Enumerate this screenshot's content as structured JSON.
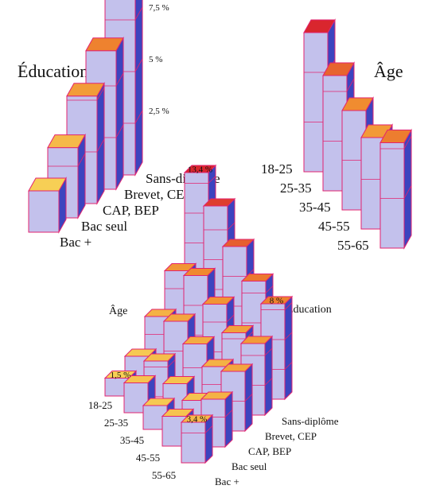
{
  "chart_data": [
    {
      "type": "bar",
      "subtype": "3d",
      "title": "Éducation",
      "categories": [
        "Bac +",
        "Bac seul",
        "CAP, BEP",
        "Brevet, CEP",
        "Sans-diplôme"
      ],
      "values": [
        2.0,
        3.4,
        5.2,
        6.7,
        10.7
      ],
      "tick_labels": [
        "2,5 %",
        "5 %",
        "7,5 %"
      ],
      "tick_values": [
        2.5,
        5,
        7.5
      ]
    },
    {
      "type": "bar",
      "subtype": "3d",
      "title": "Âge",
      "categories": [
        "18-25",
        "25-35",
        "35-45",
        "45-55",
        "55-65"
      ],
      "values": [
        7.0,
        5.8,
        5.0,
        4.6,
        5.3
      ]
    },
    {
      "type": "bar",
      "subtype": "3d-grid",
      "row_axis_title": "Âge",
      "col_axis_title": "Éducation",
      "rows": [
        "18-25",
        "25-35",
        "35-45",
        "45-55",
        "55-65"
      ],
      "cols": [
        "Bac +",
        "Bac seul",
        "CAP, BEP",
        "Brevet, CEP",
        "Sans-diplôme"
      ],
      "values": [
        [
          1.5,
          2.0,
          4.0,
          6.5,
          13.4
        ],
        [
          2.5,
          3.0,
          5.0,
          7.5,
          12.0
        ],
        [
          2.0,
          2.5,
          4.5,
          6.5,
          10.0
        ],
        [
          2.5,
          2.5,
          4.0,
          5.5,
          8.5
        ],
        [
          3.4,
          4.0,
          5.0,
          6.0,
          8.0
        ]
      ],
      "annotations": [
        {
          "row": "18-25",
          "col": "Sans-diplôme",
          "text": "13,4 %"
        },
        {
          "row": "55-65",
          "col": "Sans-diplôme",
          "text": "8 %"
        },
        {
          "row": "18-25",
          "col": "Bac +",
          "text": "1,5 %"
        },
        {
          "row": "55-65",
          "col": "Bac +",
          "text": "3,4 %"
        }
      ]
    }
  ],
  "colors": {
    "front": "#c3c1ec",
    "side": "#3c44bf",
    "edge": "#e2236f",
    "top_low": "#f7cf55",
    "top_mid": "#f08a2f",
    "top_high": "#d9262e",
    "highlight_text": "#f1d23f"
  }
}
